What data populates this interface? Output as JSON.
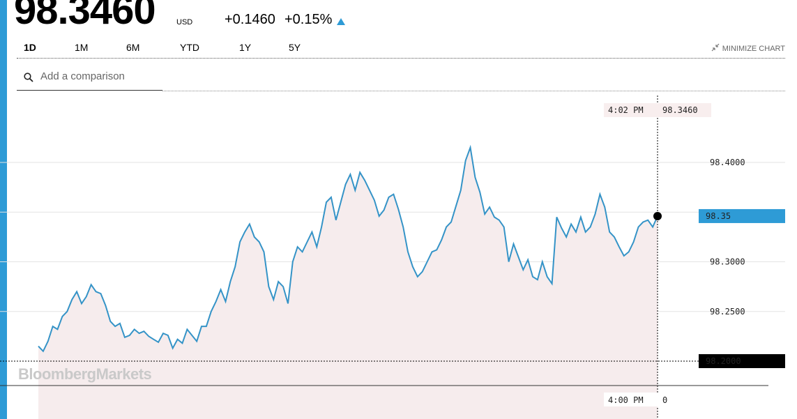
{
  "quote": {
    "price": "98.3460",
    "currency": "USD",
    "change": "+0.1460",
    "change_pct": "+0.15%",
    "direction": "up"
  },
  "tabs": [
    {
      "label": "1D",
      "active": true
    },
    {
      "label": "1M",
      "active": false
    },
    {
      "label": "6M",
      "active": false
    },
    {
      "label": "YTD",
      "active": false
    },
    {
      "label": "1Y",
      "active": false
    },
    {
      "label": "5Y",
      "active": false
    }
  ],
  "minimize_label": "MINIMIZE CHART",
  "search": {
    "placeholder": "Add a comparison"
  },
  "watermark": "BloombergMarkets",
  "colors": {
    "accent": "#2e9bd6",
    "line": "#3493c7",
    "area": "#f6eced",
    "current_marker": "#000000",
    "baseline_tag": "#000000"
  },
  "chart_data": {
    "type": "area",
    "ylim": [
      98.2,
      98.43
    ],
    "y_ticks": [
      "98.4000",
      "98.3000",
      "98.2500"
    ],
    "baseline_label": "98.2000",
    "baseline_value": 98.2,
    "current_value_label": "98.35",
    "current_value": 98.346,
    "crosshair_top_label": {
      "time": "4:02 PM",
      "value": "98.3460"
    },
    "crosshair_bottom_label": {
      "time": "4:00 PM",
      "value": "0"
    },
    "series": [
      {
        "values": [
          98.215,
          98.21,
          98.22,
          98.235,
          98.232,
          98.245,
          98.25,
          98.262,
          98.27,
          98.258,
          98.265,
          98.277,
          98.27,
          98.268,
          98.256,
          98.24,
          98.235,
          98.238,
          98.224,
          98.226,
          98.232,
          98.228,
          98.23,
          98.225,
          98.222,
          98.219,
          98.228,
          98.226,
          98.213,
          98.222,
          98.218,
          98.232,
          98.226,
          98.22,
          98.235,
          98.235,
          98.25,
          98.26,
          98.272,
          98.26,
          98.28,
          98.295,
          98.32,
          98.33,
          98.338,
          98.325,
          98.32,
          98.31,
          98.275,
          98.262,
          98.28,
          98.275,
          98.258,
          98.3,
          98.315,
          98.31,
          98.32,
          98.33,
          98.315,
          98.335,
          98.36,
          98.365,
          98.342,
          98.36,
          98.378,
          98.388,
          98.372,
          98.39,
          98.382,
          98.372,
          98.362,
          98.346,
          98.352,
          98.365,
          98.368,
          98.353,
          98.335,
          98.31,
          98.295,
          98.285,
          98.29,
          98.3,
          98.31,
          98.312,
          98.322,
          98.335,
          98.34,
          98.356,
          98.372,
          98.402,
          98.415,
          98.385,
          98.37,
          98.348,
          98.355,
          98.345,
          98.342,
          98.335,
          98.3,
          98.318,
          98.305,
          98.292,
          98.302,
          98.285,
          98.282,
          98.3,
          98.285,
          98.278,
          98.345,
          98.334,
          98.325,
          98.338,
          98.33,
          98.345,
          98.33,
          98.335,
          98.348,
          98.368,
          98.355,
          98.33,
          98.325,
          98.315,
          98.306,
          98.31,
          98.32,
          98.335,
          98.34,
          98.342,
          98.335,
          98.346
        ]
      }
    ]
  }
}
